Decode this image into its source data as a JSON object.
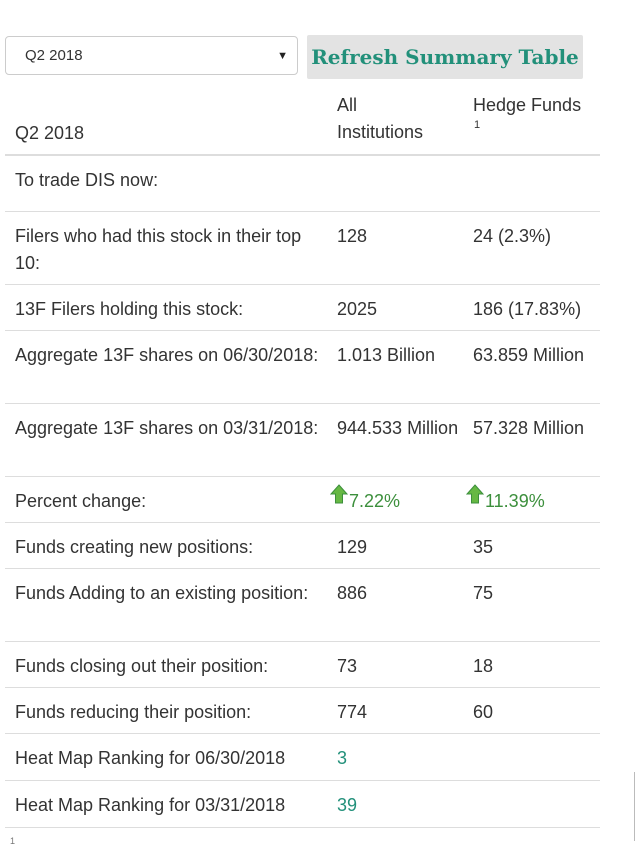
{
  "toolbar": {
    "quarter_selected": "Q2 2018",
    "refresh_label": "Refresh Summary Table"
  },
  "table": {
    "header": {
      "col1": "Q2 2018",
      "col2_line1": "All",
      "col2_line2": "Institutions",
      "col3_line1": "Hedge Funds",
      "col3_footnote": "1"
    },
    "rows": [
      {
        "label": "To trade DIS now:",
        "all": "",
        "hedge": ""
      },
      {
        "label": "Filers who had this stock in their top 10:",
        "all": "128",
        "hedge": "24 (2.3%)"
      },
      {
        "label": "13F Filers holding this stock:",
        "all": "2025",
        "hedge": "186 (17.83%)"
      },
      {
        "label": "Aggregate 13F shares on 06/30/2018:",
        "all": "1.013 Billion",
        "hedge": "63.859 Million"
      },
      {
        "label": "Aggregate 13F shares on 03/31/2018:",
        "all": "944.533 Million",
        "hedge": "57.328 Million"
      },
      {
        "label": "Percent change:",
        "all": "7.22%",
        "hedge": "11.39%"
      },
      {
        "label": "Funds creating new positions:",
        "all": "129",
        "hedge": "35"
      },
      {
        "label": "Funds Adding to an existing position:",
        "all": "886",
        "hedge": "75"
      },
      {
        "label": "Funds closing out their position:",
        "all": "73",
        "hedge": "18"
      },
      {
        "label": "Funds reducing their position:",
        "all": "774",
        "hedge": "60"
      },
      {
        "label": "Heat Map Ranking for 06/30/2018",
        "all": "3",
        "hedge": ""
      },
      {
        "label": "Heat Map Ranking for 03/31/2018",
        "all": "39",
        "hedge": ""
      }
    ],
    "footnote_marker": "1"
  },
  "colors": {
    "accent": "#22907a",
    "positive": "#3c8f3c",
    "divider": "#dddddd",
    "button_bg": "#e3e3e3"
  },
  "icons": {
    "percent_change": "green-up-arrow-icon",
    "dropdown": "chevron-down-icon"
  }
}
